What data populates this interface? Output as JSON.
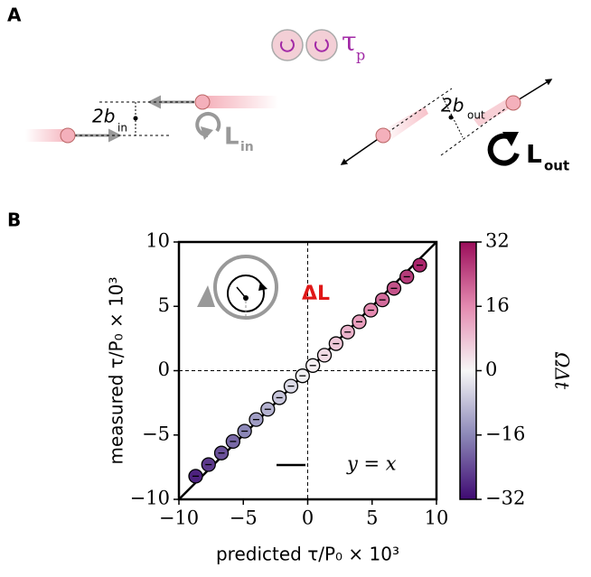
{
  "panel_labels": [
    "A",
    "B"
  ],
  "diagram": {
    "tau": "τ",
    "tau_sub": "p",
    "b_in": "2b",
    "b_in_sub": "in",
    "l_in": "L",
    "l_in_sub": "in",
    "b_out": "2b",
    "b_out_sub": "out",
    "l_out": "L",
    "l_out_sub": "out"
  },
  "chart_data": {
    "type": "scatter",
    "xlabel": "predicted τ/P₀ × 10³",
    "ylabel": "measured τ/P₀ × 10³",
    "annotation": "ΔL",
    "legend_label": "y = x",
    "x": [
      -8.7,
      -7.7,
      -6.7,
      -5.8,
      -4.9,
      -4.0,
      -3.1,
      -2.2,
      -1.3,
      -0.4,
      0.4,
      1.3,
      2.2,
      3.1,
      4.0,
      4.9,
      5.8,
      6.7,
      7.7,
      8.7
    ],
    "series": [
      {
        "values": [
          -8.2,
          -7.3,
          -6.4,
          -5.5,
          -4.7,
          -3.8,
          -3.0,
          -2.1,
          -1.2,
          -0.4,
          0.4,
          1.2,
          2.1,
          3.0,
          3.8,
          4.7,
          5.5,
          6.4,
          7.3,
          8.2
        ],
        "color_values": [
          -29,
          -26,
          -23,
          -20,
          -16,
          -13,
          -10,
          -7,
          -4,
          -1,
          1,
          4,
          7,
          10,
          13,
          16,
          20,
          23,
          26,
          29
        ]
      }
    ],
    "xlim": [
      -10,
      10
    ],
    "ylim": [
      -10,
      10
    ],
    "xticks": [
      {
        "value": -10,
        "label": "−10"
      },
      {
        "value": -5,
        "label": "−5"
      },
      0,
      5,
      10
    ],
    "yticks": [
      {
        "value": -10,
        "label": "−10"
      },
      {
        "value": -5,
        "label": "−5"
      },
      0,
      5,
      10
    ],
    "clim": [
      -32,
      32
    ],
    "cticks": [
      {
        "value": -32,
        "label": "−32"
      },
      {
        "value": -16,
        "label": "−16"
      },
      0,
      16,
      32
    ],
    "clabel": "ΩΔt",
    "colormap": [
      "#3f0a72",
      "#8c88b8",
      "#f7f7f7",
      "#e48ab0",
      "#9b0d5a"
    ]
  }
}
